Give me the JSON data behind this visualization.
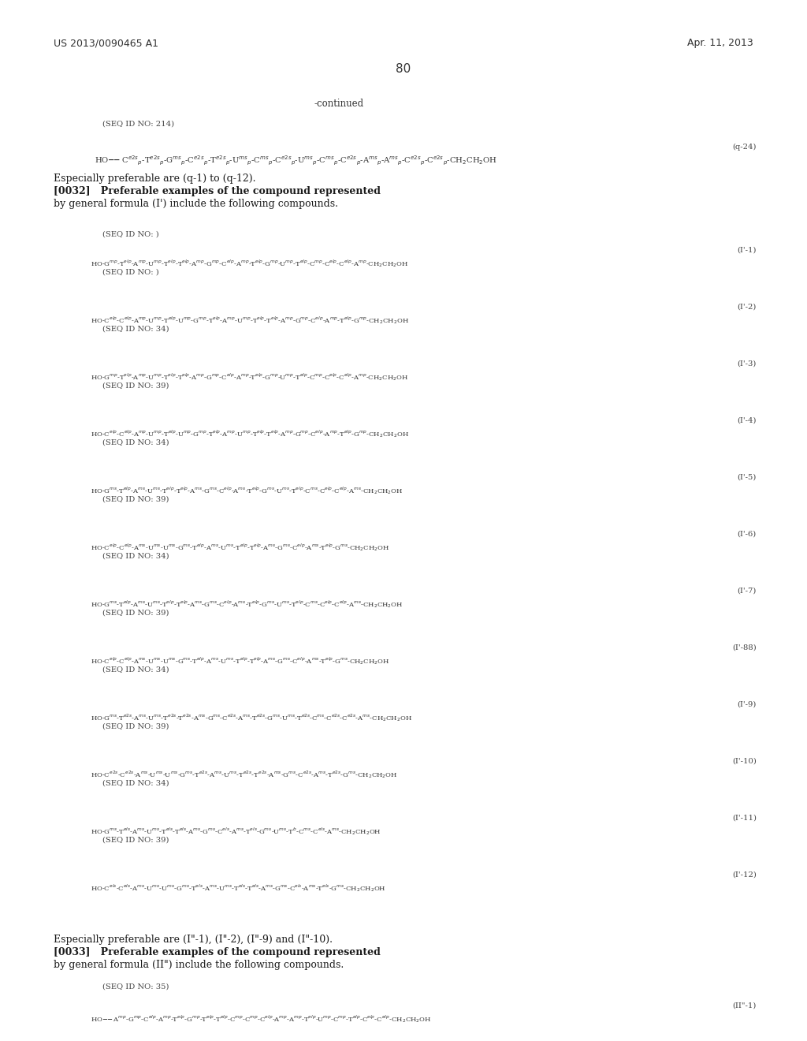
{
  "background_color": "#ffffff",
  "header_left": "US 2013/0090465 A1",
  "header_right": "Apr. 11, 2013",
  "page_number": "80",
  "continued_label": "-continued",
  "seq_id_214": "(SEQ ID NO: 214)",
  "label_q24": "(q-24)",
  "text1_l1": "Especially preferable are (q-1) to (q-12).",
  "text1_l2": "[0032]   Preferable examples of the compound represented",
  "text1_l3": "by general formula (I') include the following compounds.",
  "text2_l1": "Especially preferable are (I\"-1), (I\"-2), (I\"-9) and (I\"-10).",
  "text2_l2": "[0033]   Preferable examples of the compound represented",
  "text2_l3": "by general formula (II\") include the following compounds.",
  "seq_no_35": "(SEQ ID NO: 35)",
  "label_II1": "(II\"-1)"
}
